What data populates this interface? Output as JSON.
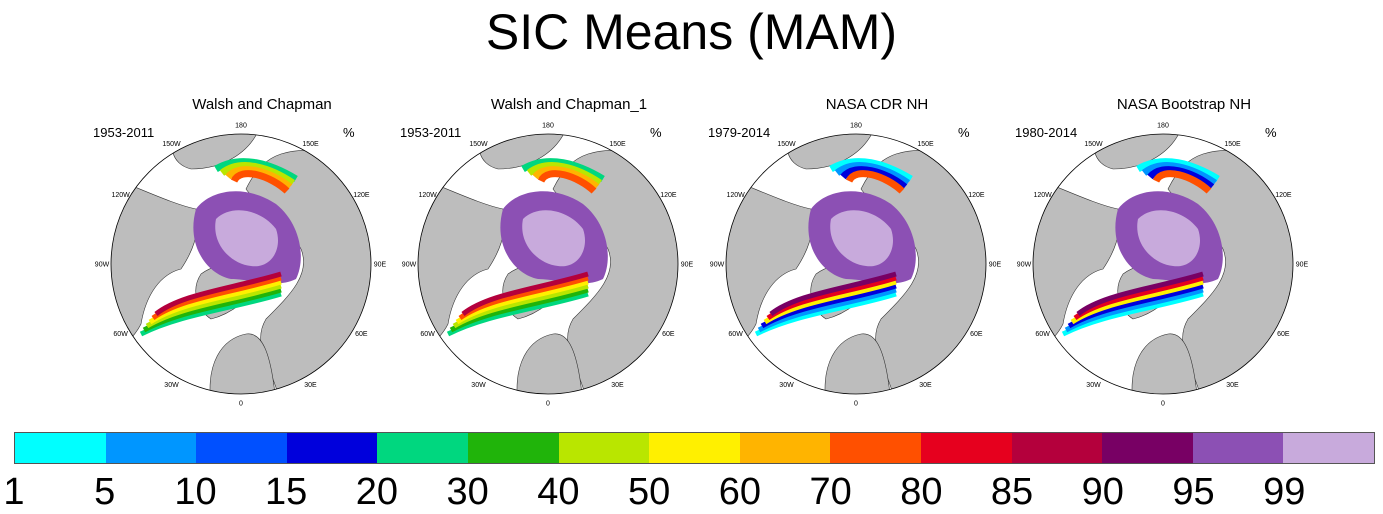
{
  "title": "SIC Means (MAM)",
  "panels": [
    {
      "title": "Walsh and Chapman",
      "period": "1953-2011",
      "units": "%",
      "variant": "wc"
    },
    {
      "title": "Walsh and Chapman_1",
      "period": "1953-2011",
      "units": "%",
      "variant": "wc"
    },
    {
      "title": "NASA CDR NH",
      "period": "1979-2014",
      "units": "%",
      "variant": "nasa"
    },
    {
      "title": "NASA Bootstrap NH",
      "period": "1980-2014",
      "units": "%",
      "variant": "nasa"
    }
  ],
  "longitude_labels": [
    "180",
    "150E",
    "120E",
    "90E",
    "60E",
    "30E",
    "0",
    "30W",
    "60W",
    "90W",
    "120W",
    "150W"
  ],
  "colorbar": {
    "colors": [
      "#00ffff",
      "#0096ff",
      "#0050ff",
      "#0000dc",
      "#00d77f",
      "#20b40a",
      "#b9e600",
      "#fff000",
      "#ffb400",
      "#ff5000",
      "#e6001e",
      "#b4003c",
      "#780064",
      "#8c50b4",
      "#c8aadc"
    ],
    "labels": [
      "1",
      "5",
      "10",
      "15",
      "20",
      "30",
      "40",
      "50",
      "60",
      "70",
      "80",
      "85",
      "90",
      "95",
      "99"
    ]
  },
  "map_colors": {
    "land": "#bdbdbd",
    "ocean": "#ffffff",
    "coast": "#333333"
  }
}
